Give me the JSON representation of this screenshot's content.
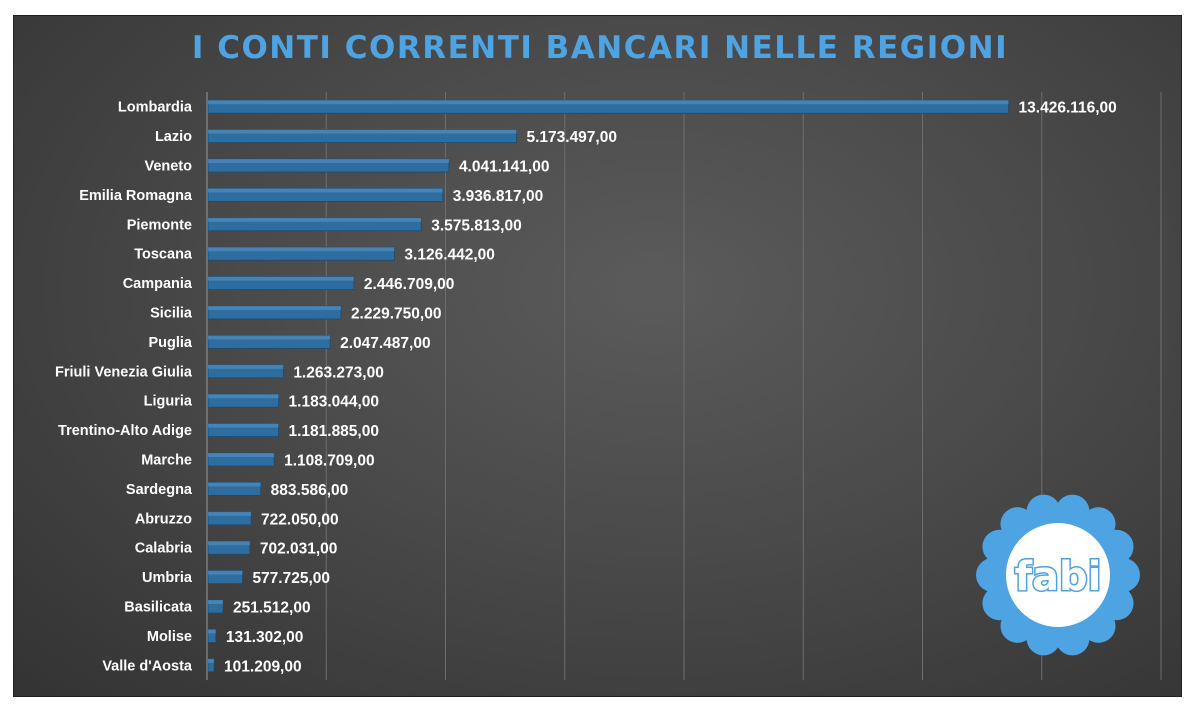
{
  "chart_data": {
    "type": "bar",
    "orientation": "horizontal",
    "title": "I CONTI CORRENTI BANCARI NELLE REGIONI",
    "xlim": [
      0,
      16000000
    ],
    "grid": true,
    "categories": [
      "Lombardia",
      "Lazio",
      "Veneto",
      "Emilia Romagna",
      "Piemonte",
      "Toscana",
      "Campania",
      "Sicilia",
      "Puglia",
      "Friuli Venezia Giulia",
      "Liguria",
      "Trentino-Alto Adige",
      "Marche",
      "Sardegna",
      "Abruzzo",
      "Calabria",
      "Umbria",
      "Basilicata",
      "Molise",
      "Valle d'Aosta"
    ],
    "values": [
      13426116,
      5173497,
      4041141,
      3936817,
      3575813,
      3126442,
      2446709,
      2229750,
      2047487,
      1263273,
      1183044,
      1181885,
      1108709,
      883586,
      722050,
      702031,
      577725,
      251512,
      131302,
      101209
    ],
    "value_labels": [
      "13.426.116,00",
      "5.173.497,00",
      "4.041.141,00",
      "3.936.817,00",
      "3.575.813,00",
      "3.126.442,00",
      "2.446.709,00",
      "2.229.750,00",
      "2.047.487,00",
      "1.263.273,00",
      "1.183.044,00",
      "1.181.885,00",
      "1.108.709,00",
      "883.586,00",
      "722.050,00",
      "702.031,00",
      "577.725,00",
      "251.512,00",
      "131.302,00",
      "101.209,00"
    ],
    "bar_color": "#2e6da0"
  },
  "logo": {
    "text": "fabi",
    "petal_color": "#4ea3e3",
    "center_color": "#ffffff"
  },
  "colors": {
    "title": "#4ea3e3",
    "background": "#4a4a4a"
  }
}
